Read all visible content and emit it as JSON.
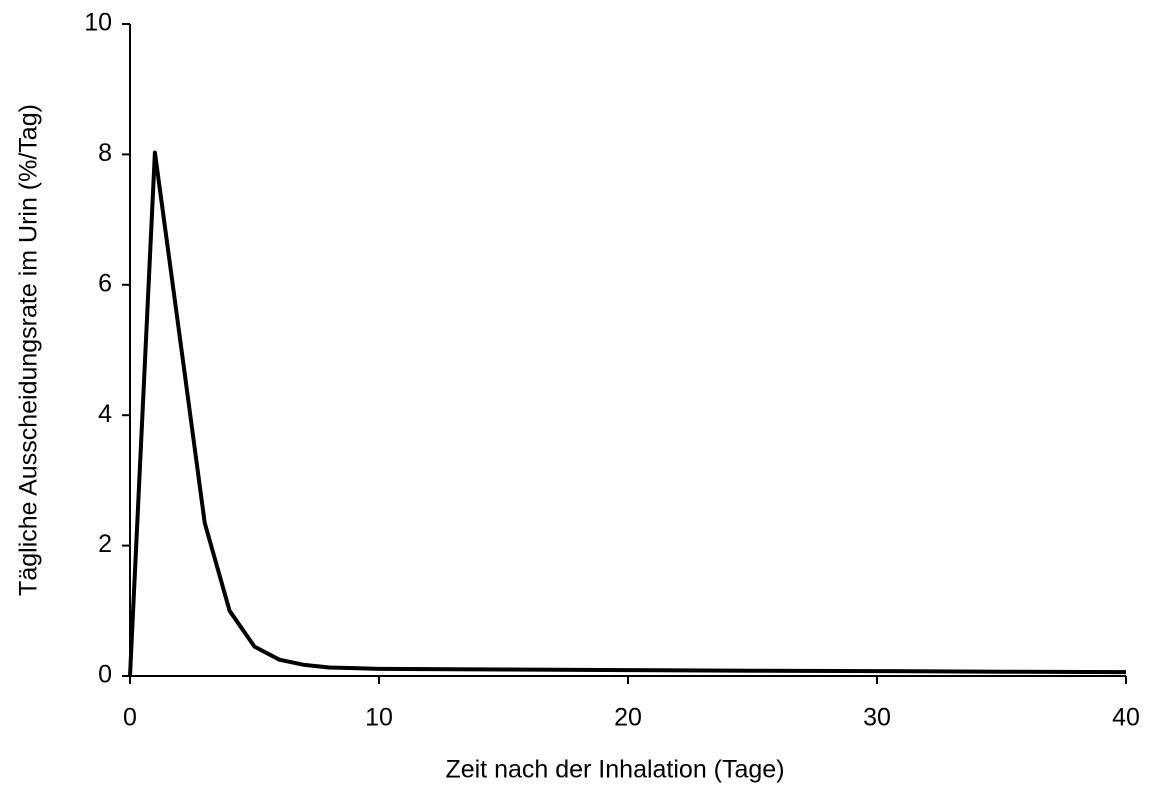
{
  "chart_data": {
    "type": "line",
    "x_label": "Zeit nach der Inhalation (Tage)",
    "y_label": "Tägliche Ausscheidungsrate im Urin (%/Tag)",
    "x": [
      0,
      1,
      2,
      3,
      4,
      5,
      6,
      7,
      8,
      9,
      10,
      15,
      20,
      25,
      30,
      35,
      40
    ],
    "series": [
      {
        "color": "#000000",
        "values": [
          0,
          8.03,
          5.2,
          2.35,
          1.0,
          0.45,
          0.25,
          0.17,
          0.13,
          0.12,
          0.11,
          0.1,
          0.09,
          0.08,
          0.075,
          0.065,
          0.06
        ]
      }
    ],
    "xlim": [
      0,
      40
    ],
    "xticks": [
      0,
      10,
      20,
      30,
      40
    ],
    "ylim": [
      0,
      10
    ],
    "yticks": [
      0,
      2,
      4,
      6,
      8,
      10
    ],
    "grid": false
  }
}
